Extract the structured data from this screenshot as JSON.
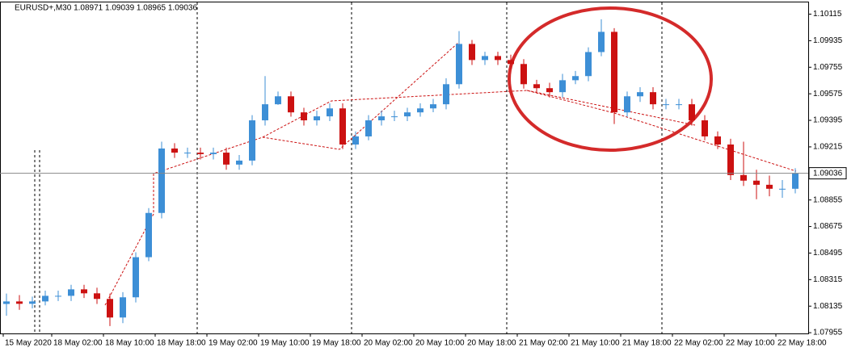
{
  "chart_data": {
    "type": "candlestick",
    "title": "EURUSD+,M30  1.08971 1.09039 1.08965 1.09036",
    "up_color": "#3d8fd6",
    "down_color": "#cc1111",
    "x": [
      0,
      1,
      2,
      3,
      4,
      5,
      6,
      7,
      8,
      9,
      10,
      11,
      12,
      13,
      14,
      15,
      16,
      17,
      18,
      19,
      20,
      21,
      22,
      23,
      24,
      25,
      26,
      27,
      28,
      29,
      30,
      31,
      32,
      33,
      34,
      35,
      36,
      37,
      38,
      39,
      40,
      41,
      42,
      43,
      44,
      45,
      46,
      47,
      48,
      49,
      50,
      51,
      52,
      53,
      54,
      55,
      56,
      57,
      58,
      59,
      60,
      61
    ],
    "open": [
      1.0815,
      1.08167,
      1.08151,
      1.08167,
      1.08205,
      1.08205,
      1.08249,
      1.08222,
      1.08184,
      1.08058,
      1.08195,
      1.08467,
      1.08767,
      1.09204,
      1.09176,
      1.09176,
      1.09166,
      1.09176,
      1.09095,
      1.09122,
      1.09395,
      1.09504,
      1.09558,
      1.09449,
      1.09395,
      1.09422,
      1.09476,
      1.09231,
      1.09286,
      1.09395,
      1.09422,
      1.09422,
      1.09449,
      1.09476,
      1.09504,
      1.0964,
      1.09913,
      1.09804,
      1.09831,
      1.09804,
      1.09777,
      1.0964,
      1.09613,
      1.09586,
      1.09667,
      1.09695,
      1.09858,
      1.09995,
      1.09449,
      1.09558,
      1.09586,
      1.09504,
      1.09504,
      1.09504,
      1.09395,
      1.09286,
      1.09231,
      1.09024,
      1.08986,
      1.08958,
      1.08931,
      1.08931
    ],
    "high": [
      1.0822,
      1.0821,
      1.082,
      1.0824,
      1.0824,
      1.0828,
      1.0828,
      1.0826,
      1.0822,
      1.0823,
      1.085,
      1.088,
      1.0925,
      1.0924,
      1.0921,
      1.0921,
      1.0921,
      1.0921,
      1.0916,
      1.0943,
      1.09695,
      1.0959,
      1.0959,
      1.0948,
      1.0946,
      1.0951,
      1.0951,
      1.0932,
      1.0943,
      1.0946,
      1.0946,
      1.0948,
      1.0951,
      1.0954,
      1.0968,
      1.1,
      1.0994,
      1.0986,
      1.0986,
      1.0984,
      1.0981,
      1.0967,
      1.0965,
      1.0971,
      1.0973,
      1.0989,
      1.1008,
      1.1002,
      1.0959,
      1.0962,
      1.0962,
      1.0954,
      1.0954,
      1.0954,
      1.0943,
      1.0932,
      1.0927,
      1.0925,
      1.0906,
      1.0902,
      1.0899,
      1.0907
    ],
    "low": [
      1.0807,
      1.0811,
      1.0812,
      1.0814,
      1.0817,
      1.0817,
      1.0819,
      1.0815,
      1.08,
      1.0802,
      1.0816,
      1.0844,
      1.0873,
      1.0914,
      1.0914,
      1.0913,
      1.0913,
      1.0906,
      1.0906,
      1.0909,
      1.0936,
      1.095,
      1.0942,
      1.0936,
      1.0936,
      1.0939,
      1.092,
      1.092,
      1.0926,
      1.0936,
      1.0939,
      1.0939,
      1.0942,
      1.0945,
      1.0947,
      1.0961,
      1.0977,
      1.0977,
      1.0977,
      1.0974,
      1.0961,
      1.0958,
      1.0955,
      1.0955,
      1.0964,
      1.0966,
      1.0983,
      1.0937,
      1.0942,
      1.0952,
      1.0947,
      1.0947,
      1.0947,
      1.0936,
      1.0926,
      1.092,
      1.0899,
      1.0895,
      1.0886,
      1.0888,
      1.0887,
      1.089
    ],
    "close": [
      1.08167,
      1.08151,
      1.08167,
      1.08205,
      1.08205,
      1.08249,
      1.08222,
      1.08184,
      1.08058,
      1.08195,
      1.08467,
      1.08767,
      1.09204,
      1.09176,
      1.09176,
      1.09166,
      1.09176,
      1.09095,
      1.09122,
      1.09395,
      1.09504,
      1.09558,
      1.09449,
      1.09395,
      1.09422,
      1.09476,
      1.09231,
      1.09286,
      1.09395,
      1.09422,
      1.09422,
      1.09449,
      1.09476,
      1.09504,
      1.0964,
      1.09913,
      1.09804,
      1.09831,
      1.09804,
      1.09777,
      1.0964,
      1.09613,
      1.09586,
      1.09667,
      1.09695,
      1.09858,
      1.09995,
      1.09449,
      1.09558,
      1.09586,
      1.09504,
      1.09504,
      1.09504,
      1.09395,
      1.09286,
      1.09231,
      1.09024,
      1.08986,
      1.08958,
      1.08931,
      1.08931,
      1.09036
    ],
    "last_price": 1.09036,
    "xlim": [
      -0.5,
      62
    ],
    "ylim": [
      1.0795,
      1.102
    ],
    "yticks": [
      1.10115,
      1.09935,
      1.09755,
      1.09575,
      1.09395,
      1.09215,
      1.08855,
      1.08675,
      1.08495,
      1.08315,
      1.08135,
      1.07955
    ],
    "xticks": [
      {
        "value": -0.25,
        "label": "15 May 2020"
      },
      {
        "value": 3.5,
        "label": "18 May 02:00"
      },
      {
        "value": 7.5,
        "label": "18 May 10:00"
      },
      {
        "value": 11.5,
        "label": "18 May 18:00"
      },
      {
        "value": 15.5,
        "label": "19 May 02:00"
      },
      {
        "value": 19.5,
        "label": "19 May 10:00"
      },
      {
        "value": 23.5,
        "label": "19 May 18:00"
      },
      {
        "value": 27.5,
        "label": "20 May 02:00"
      },
      {
        "value": 31.5,
        "label": "20 May 10:00"
      },
      {
        "value": 35.5,
        "label": "20 May 18:00"
      },
      {
        "value": 39.5,
        "label": "21 May 02:00"
      },
      {
        "value": 43.5,
        "label": "21 May 10:00"
      },
      {
        "value": 47.5,
        "label": "21 May 18:00"
      },
      {
        "value": 51.5,
        "label": "22 May 02:00"
      },
      {
        "value": 55.5,
        "label": "22 May 10:00"
      },
      {
        "value": 59.5,
        "label": "22 May 18:00"
      }
    ],
    "grid": false
  }
}
